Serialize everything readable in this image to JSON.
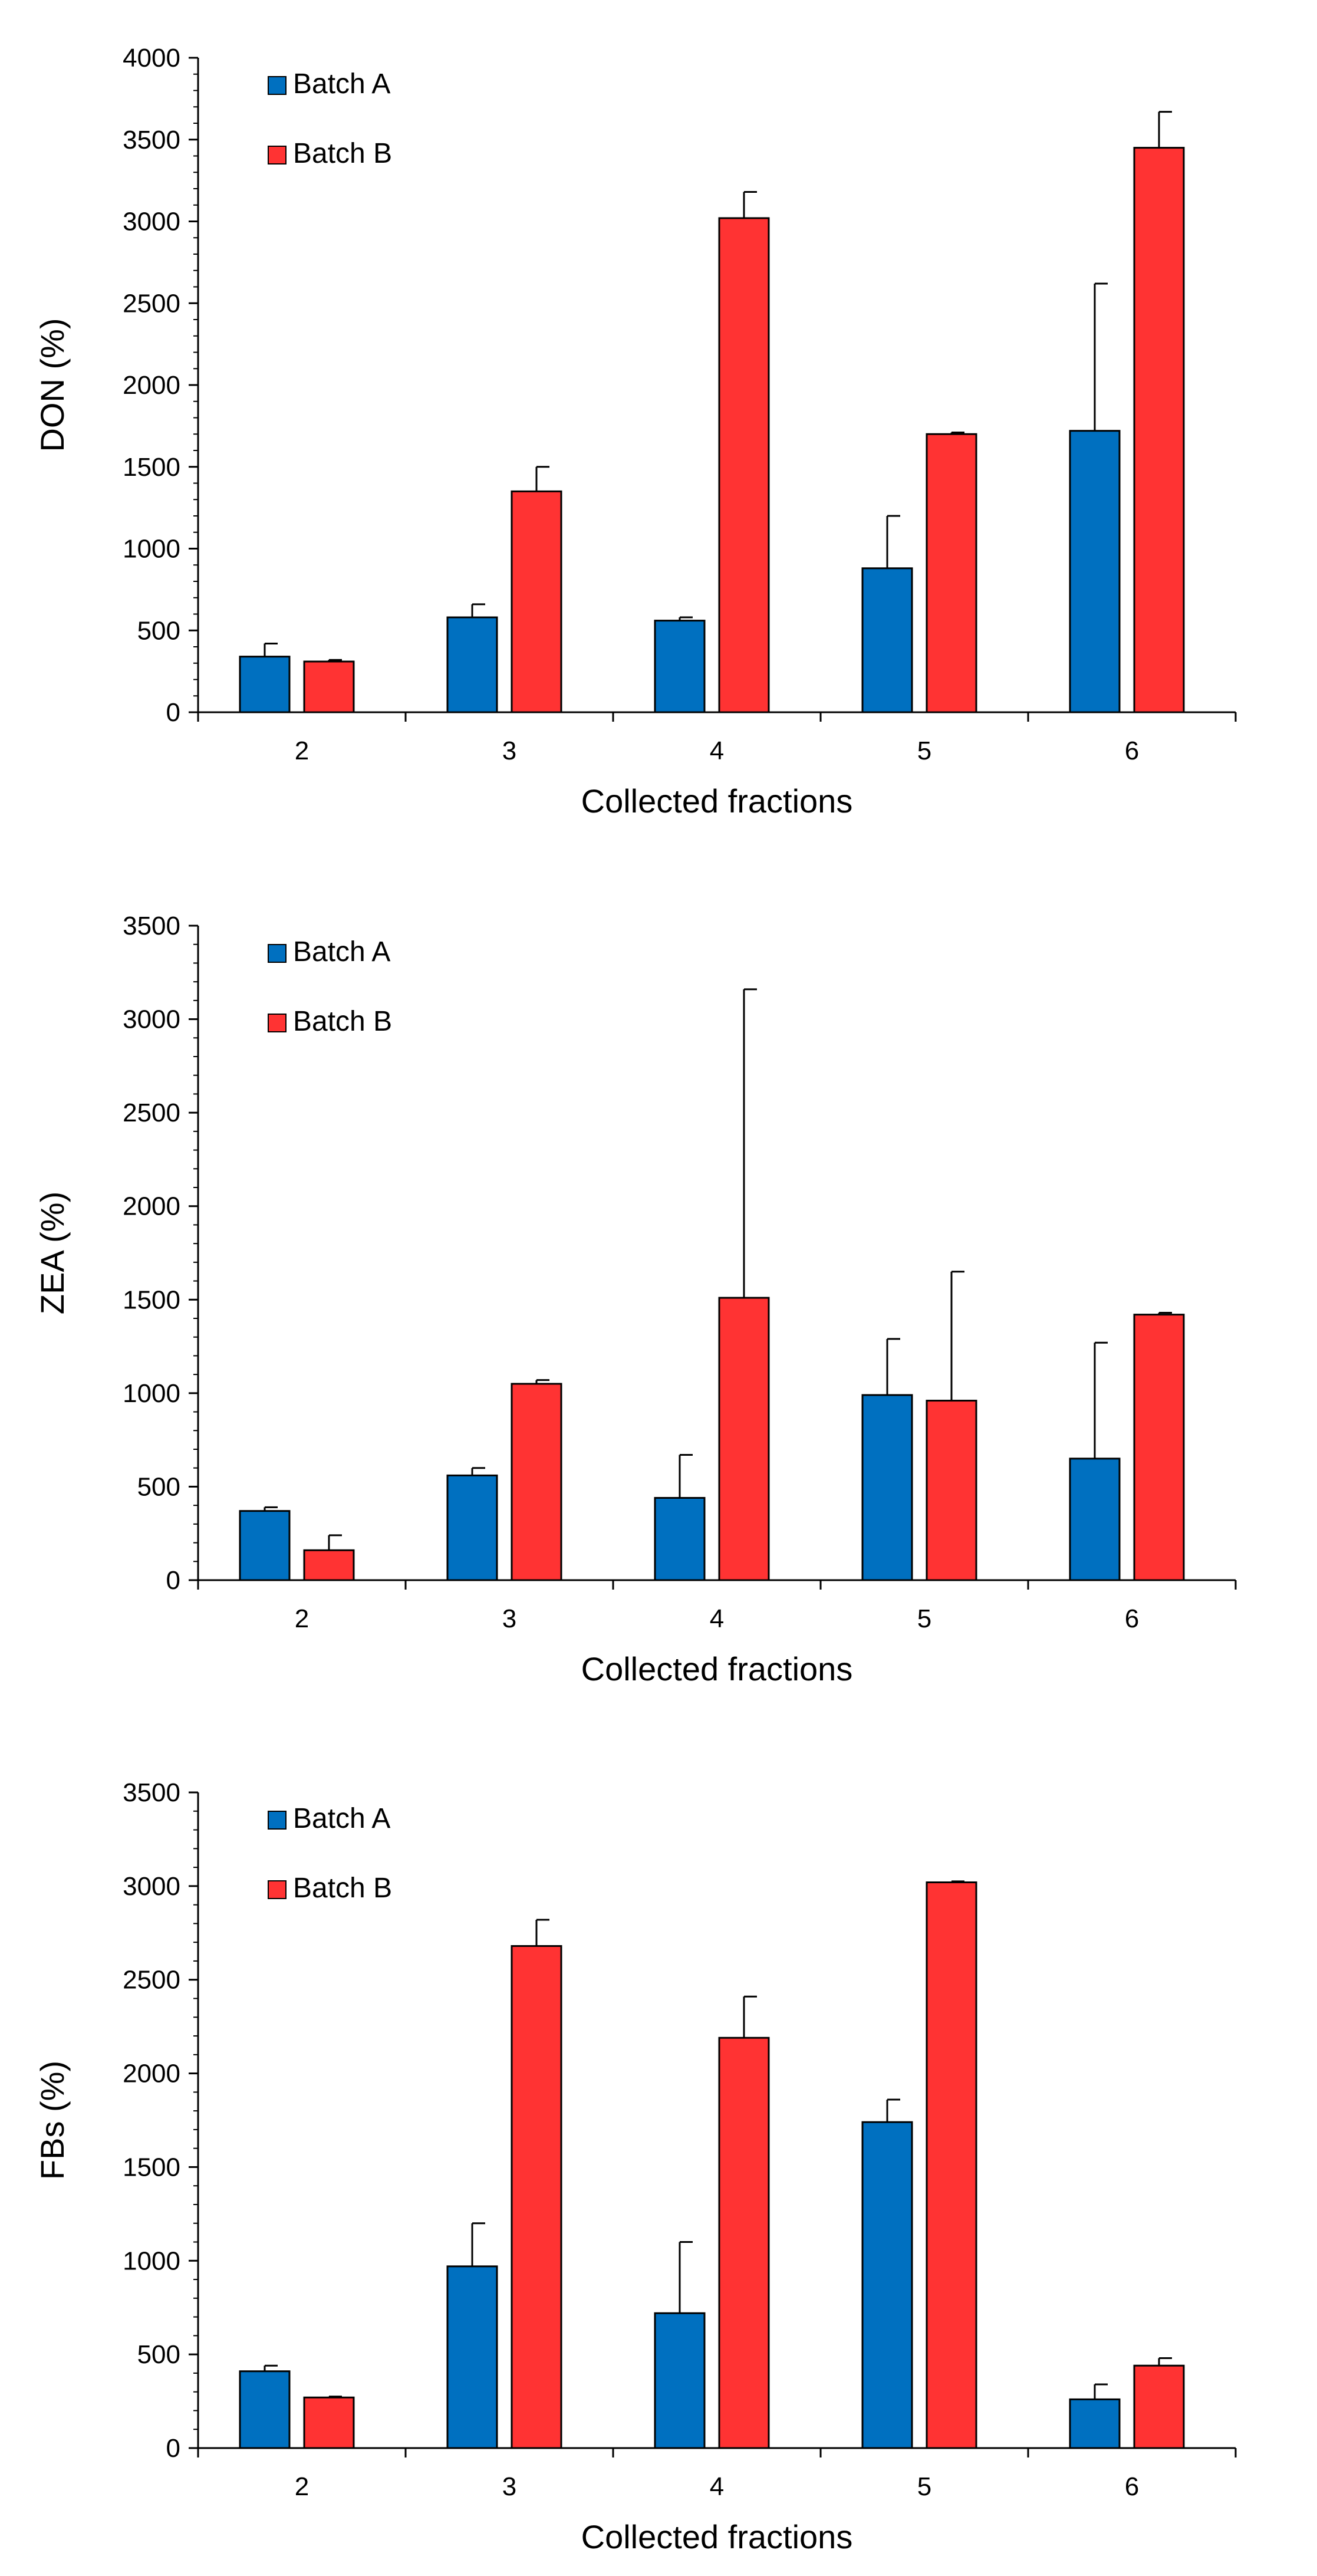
{
  "chart_data": [
    {
      "type": "bar",
      "title": "",
      "xlabel": "Collected fractions",
      "ylabel": "DON (%)",
      "categories": [
        "2",
        "3",
        "4",
        "5",
        "6"
      ],
      "ylim": [
        0,
        4000
      ],
      "ytick_step": 500,
      "yticks": [
        "0",
        "500",
        "1000",
        "1500",
        "2000",
        "2500",
        "3000",
        "3500",
        "4000"
      ],
      "legend": "top-left",
      "series": [
        {
          "name": "Batch A",
          "color": "#0070C0",
          "values": [
            340,
            580,
            560,
            880,
            1720
          ],
          "errors": [
            80,
            80,
            20,
            320,
            900
          ]
        },
        {
          "name": "Batch B",
          "color": "#FF3333",
          "values": [
            310,
            1350,
            3020,
            1700,
            3450
          ],
          "errors": [
            10,
            150,
            160,
            10,
            220
          ]
        }
      ]
    },
    {
      "type": "bar",
      "title": "",
      "xlabel": "Collected fractions",
      "ylabel": "ZEA (%)",
      "categories": [
        "2",
        "3",
        "4",
        "5",
        "6"
      ],
      "ylim": [
        0,
        3500
      ],
      "ytick_step": 500,
      "yticks": [
        "0",
        "500",
        "1000",
        "1500",
        "2000",
        "2500",
        "3000",
        "3500"
      ],
      "legend": "top-left",
      "series": [
        {
          "name": "Batch A",
          "color": "#0070C0",
          "values": [
            370,
            560,
            440,
            990,
            650
          ],
          "errors": [
            20,
            40,
            230,
            300,
            620
          ]
        },
        {
          "name": "Batch B",
          "color": "#FF3333",
          "values": [
            160,
            1050,
            1510,
            960,
            1420
          ],
          "errors": [
            80,
            20,
            1650,
            690,
            10
          ]
        }
      ]
    },
    {
      "type": "bar",
      "title": "",
      "xlabel": "Collected fractions",
      "ylabel": "FBs (%)",
      "categories": [
        "2",
        "3",
        "4",
        "5",
        "6"
      ],
      "ylim": [
        0,
        3500
      ],
      "ytick_step": 500,
      "yticks": [
        "0",
        "500",
        "1000",
        "1500",
        "2000",
        "2500",
        "3000",
        "3500"
      ],
      "legend": "top-left",
      "series": [
        {
          "name": "Batch A",
          "color": "#0070C0",
          "values": [
            410,
            970,
            720,
            1740,
            260
          ],
          "errors": [
            30,
            230,
            380,
            120,
            80
          ]
        },
        {
          "name": "Batch B",
          "color": "#FF3333",
          "values": [
            270,
            2680,
            2190,
            3020,
            440
          ],
          "errors": [
            5,
            140,
            220,
            5,
            40
          ]
        }
      ]
    }
  ]
}
